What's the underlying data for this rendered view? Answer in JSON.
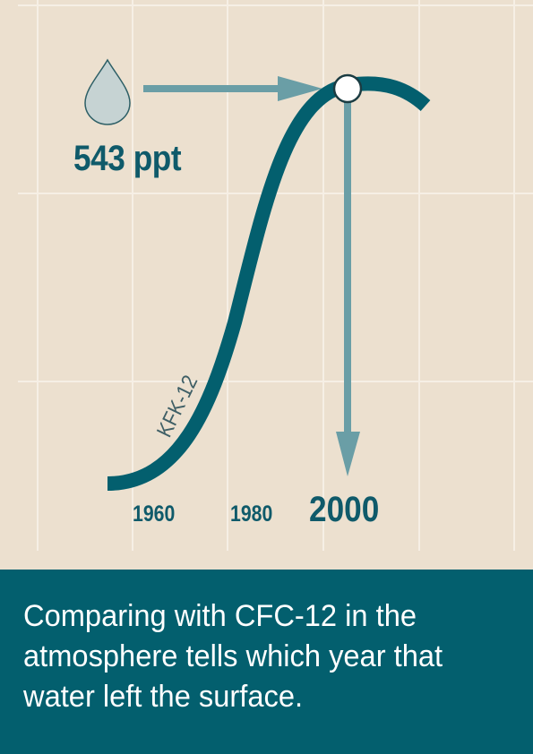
{
  "diagram": {
    "value_label": "543 ppt",
    "series_label": "KFK-12",
    "x_ticks": [
      "1960",
      "1980",
      "2000"
    ],
    "highlight_tick": "2000",
    "icon": "water-drop-icon",
    "colors": {
      "background": "#ece0cf",
      "curve": "#035f6e",
      "arrow": "#6a9ea6",
      "drop_fill": "#c6d3d3",
      "text": "#0f5a6a",
      "panel": "#035f6e"
    }
  },
  "caption": {
    "text": "Comparing with CFC-12 in the atmosphere tells which year that water left the surface."
  }
}
